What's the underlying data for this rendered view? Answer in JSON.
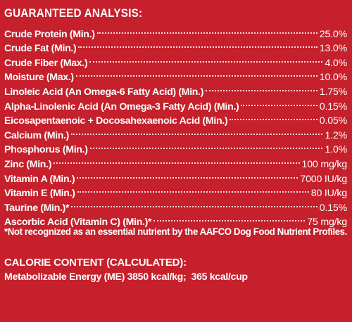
{
  "panel": {
    "background_color": "#c5202b",
    "text_color": "#ffffff"
  },
  "analysis": {
    "title": "GUARANTEED ANALYSIS:",
    "rows": [
      {
        "name": "Crude Protein (Min.)",
        "value": "25.0%"
      },
      {
        "name": "Crude Fat (Min.)",
        "value": "13.0%"
      },
      {
        "name": "Crude Fiber (Max.)",
        "value": "4.0%"
      },
      {
        "name": "Moisture (Max.)",
        "value": "10.0%"
      },
      {
        "name": "Linoleic Acid (An Omega-6 Fatty Acid) (Min.)",
        "value": "1.75%"
      },
      {
        "name": "Alpha-Linolenic Acid (An Omega-3 Fatty Acid) (Min.)",
        "value": "0.15%"
      },
      {
        "name": "Eicosapentaenoic + Docosahexaenoic Acid (Min.)",
        "value": "0.05%"
      },
      {
        "name": "Calcium (Min.)",
        "value": "1.2%"
      },
      {
        "name": "Phosphorus (Min.)",
        "value": "1.0%"
      },
      {
        "name": "Zinc (Min.)",
        "value": "100 mg/kg"
      },
      {
        "name": "Vitamin A (Min.)",
        "value": "7000 IU/kg"
      },
      {
        "name": "Vitamin E (Min.)",
        "value": "80 IU/kg"
      },
      {
        "name": "Taurine (Min.)*",
        "value": "0.15%"
      },
      {
        "name": "Ascorbic Acid (Vitamin C) (Min.)*",
        "value": "75 mg/kg"
      }
    ],
    "footnote": "*Not recognized as an essential nutrient by the AAFCO Dog Food Nutrient Profiles."
  },
  "calorie": {
    "title": "CALORIE CONTENT (CALCULATED):",
    "line": "Metabolizable Energy (ME) 3850 kcal/kg;  365 kcal/cup"
  }
}
